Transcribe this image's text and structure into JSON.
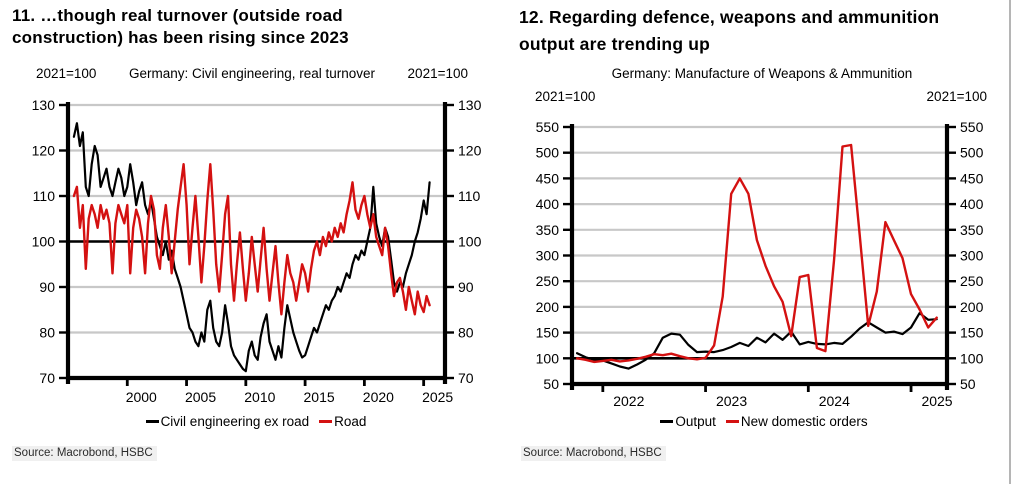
{
  "page": {
    "background": "#ffffff",
    "right_border_color": "#b5b5b5",
    "grid_color": "#c8c8c8",
    "axis_color": "#000000"
  },
  "charts": [
    {
      "title_line1": "11. …though real turnover (outside road",
      "title_line2": "construction) has been rising since 2023",
      "unit_left": "2021=100",
      "unit_right": "2021=100",
      "subtitle": "Germany: Civil engineering, real turnover",
      "source": "Source: Macrobond, HSBC",
      "legend": [
        {
          "label": "Civil engineering ex road",
          "color": "#000000"
        },
        {
          "label": "Road",
          "color": "#d41111"
        }
      ]
    },
    {
      "title_line1": "12. Regarding defence, weapons and ammunition",
      "title_line2": "output are trending up",
      "unit_left": "2021=100",
      "unit_right": "2021=100",
      "subtitle": "Germany: Manufacture of Weapons & Ammunition",
      "source": "Source: Macrobond, HSBC",
      "legend": [
        {
          "label": "Output",
          "color": "#000000"
        },
        {
          "label": "New domestic orders",
          "color": "#d41111"
        }
      ]
    }
  ],
  "chart_data": [
    {
      "type": "line",
      "title": "Germany: Civil engineering, real turnover",
      "index_note": "2021=100",
      "xlabel": "",
      "ylabel": "2021=100",
      "x_range": [
        1995.0,
        2026.8
      ],
      "y_range": [
        70,
        130
      ],
      "x_ticks": [
        2000,
        2005,
        2010,
        2015,
        2020,
        2025
      ],
      "y_ticks": [
        70,
        80,
        90,
        100,
        110,
        120,
        130
      ],
      "baseline": 100,
      "grid": "horizontal",
      "legend_position": "bottom",
      "x_start": 1995.5,
      "x_step": 0.25,
      "series": [
        {
          "name": "Civil engineering ex road",
          "color": "#000000",
          "values": [
            123,
            126,
            121,
            124,
            112,
            110,
            117,
            121,
            119,
            112,
            114,
            116,
            112,
            110,
            113,
            116,
            114,
            110,
            112,
            117,
            113,
            108,
            111,
            113,
            108,
            106,
            109,
            105,
            101,
            99,
            97,
            100,
            96,
            98,
            94,
            92,
            90,
            87,
            84,
            81,
            80,
            78,
            77,
            80,
            78,
            85,
            87,
            81,
            78,
            77,
            80,
            86,
            82,
            77,
            75,
            74,
            73,
            72,
            71.5,
            76,
            78,
            75,
            74,
            79,
            82,
            84,
            78,
            76,
            74,
            77,
            74.5,
            81,
            86,
            83,
            80,
            78,
            76,
            74.5,
            75,
            77,
            79,
            81,
            80,
            82,
            84,
            86,
            85,
            87,
            88,
            90,
            89,
            91,
            93,
            92,
            95,
            97,
            96,
            98,
            97,
            100,
            103,
            112,
            104,
            101,
            99,
            103,
            101,
            96,
            91,
            89,
            91,
            90,
            93,
            95,
            97,
            100,
            102,
            105,
            109,
            106,
            113
          ]
        },
        {
          "name": "Road",
          "color": "#d41111",
          "values": [
            110,
            112,
            103,
            108,
            94,
            105,
            108,
            106,
            103,
            108,
            105,
            107,
            104,
            93,
            104,
            108,
            106,
            104,
            108,
            93,
            103,
            107,
            105,
            101,
            93,
            104,
            110,
            107,
            97,
            94,
            103,
            108,
            101,
            93,
            100,
            107,
            112,
            117,
            108,
            95,
            103,
            110,
            101,
            91,
            99,
            109,
            117,
            107,
            95,
            89,
            97,
            106,
            110,
            95,
            87,
            95,
            102,
            94,
            87,
            93,
            101,
            95,
            89,
            96,
            103,
            94,
            87,
            93,
            99,
            91,
            84,
            91,
            97,
            93,
            91,
            87,
            91,
            95,
            93,
            89,
            94,
            98,
            100,
            97,
            101,
            99,
            102,
            100,
            103,
            101,
            104,
            102,
            106,
            109,
            113,
            107,
            105,
            108,
            110,
            106,
            103,
            106,
            101,
            99,
            97,
            103,
            99,
            93,
            88,
            91,
            92,
            89,
            85,
            90,
            87,
            84,
            89,
            86,
            84.5,
            88,
            86
          ]
        }
      ]
    },
    {
      "type": "line",
      "title": "Germany: Manufacture of Weapons & Ammunition",
      "index_note": "2021=100",
      "xlabel": "",
      "ylabel": "2021=100",
      "x_range": [
        2021.7,
        2025.35
      ],
      "y_range": [
        50,
        550
      ],
      "x_ticks": [
        2022,
        2023,
        2024,
        2025
      ],
      "y_ticks": [
        50,
        100,
        150,
        200,
        250,
        300,
        350,
        400,
        450,
        500,
        550
      ],
      "baseline": 100,
      "grid": "horizontal",
      "legend_position": "bottom",
      "x_start": 2021.75,
      "x_step": 0.0833333,
      "series": [
        {
          "name": "Output",
          "color": "#000000",
          "values": [
            110,
            102,
            97,
            96,
            90,
            84,
            80,
            88,
            97,
            110,
            140,
            148,
            146,
            126,
            112,
            113,
            112,
            116,
            122,
            130,
            124,
            140,
            131,
            148,
            136,
            152,
            127,
            132,
            128,
            127,
            130,
            128,
            142,
            158,
            170,
            160,
            150,
            152,
            147,
            160,
            188,
            175,
            176
          ]
        },
        {
          "name": "New domestic orders",
          "color": "#d41111",
          "values": [
            100,
            97,
            93,
            95,
            97,
            94,
            96,
            99,
            103,
            108,
            106,
            109,
            104,
            100,
            98,
            101,
            125,
            220,
            420,
            450,
            420,
            330,
            280,
            240,
            210,
            143,
            258,
            262,
            120,
            114,
            290,
            512,
            515,
            340,
            163,
            230,
            365,
            330,
            295,
            225,
            195,
            160,
            179
          ]
        }
      ]
    }
  ]
}
